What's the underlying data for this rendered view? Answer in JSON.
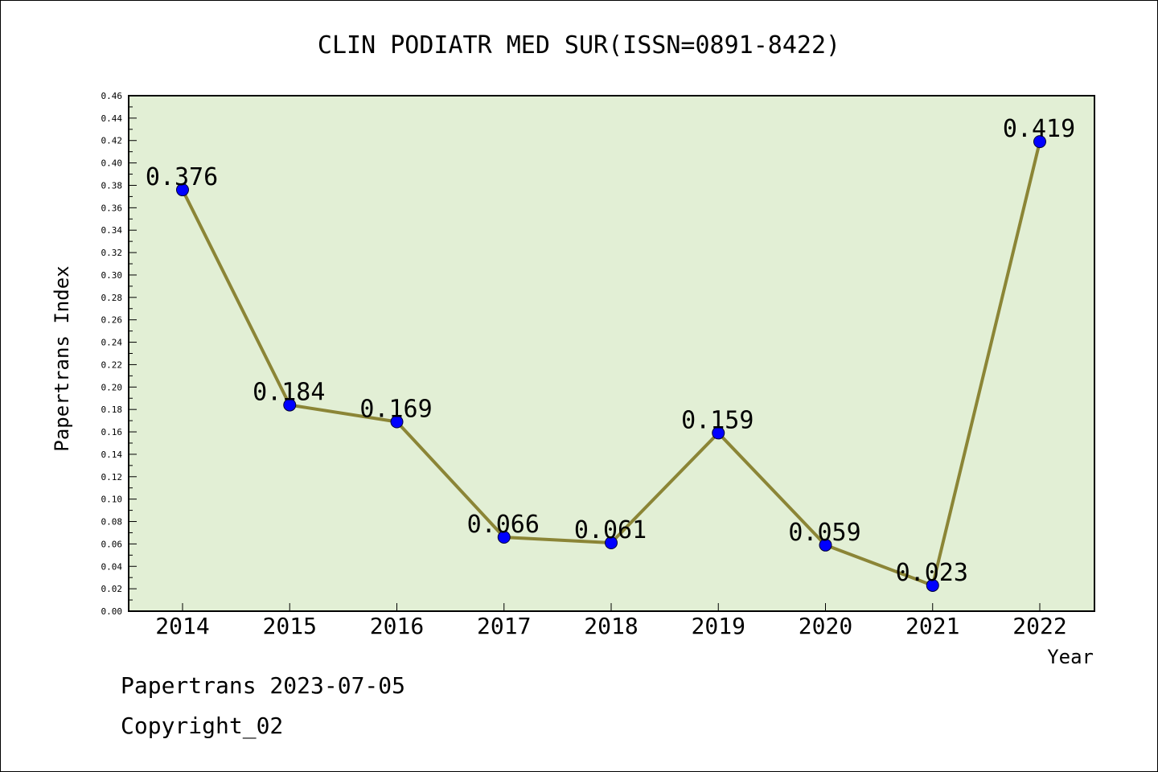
{
  "chart_data": {
    "type": "line",
    "title": "CLIN PODIATR MED SUR(ISSN=0891-8422)",
    "xlabel": "Year",
    "ylabel": "Papertrans Index",
    "x": [
      "2014",
      "2015",
      "2016",
      "2017",
      "2018",
      "2019",
      "2020",
      "2021",
      "2022"
    ],
    "values": [
      0.376,
      0.184,
      0.169,
      0.066,
      0.061,
      0.159,
      0.059,
      0.023,
      0.419
    ],
    "data_labels": [
      "0.376",
      "0.184",
      "0.169",
      "0.066",
      "0.061",
      "0.159",
      "0.059",
      "0.023",
      "0.419"
    ],
    "ylim": [
      0,
      0.46
    ],
    "yticks": [
      "0.00",
      "0.02",
      "0.04",
      "0.06",
      "0.08",
      "0.10",
      "0.12",
      "0.14",
      "0.16",
      "0.18",
      "0.20",
      "0.22",
      "0.24",
      "0.26",
      "0.28",
      "0.30",
      "0.32",
      "0.34",
      "0.36",
      "0.38",
      "0.40",
      "0.42",
      "0.44",
      "0.46"
    ],
    "grid": false,
    "colors": {
      "plot_background": "#e2efd5",
      "line": "#8b8536",
      "marker": "#0000ff"
    }
  },
  "footer": {
    "line1": "Papertrans 2023-07-05",
    "line2": "Copyright_02"
  }
}
